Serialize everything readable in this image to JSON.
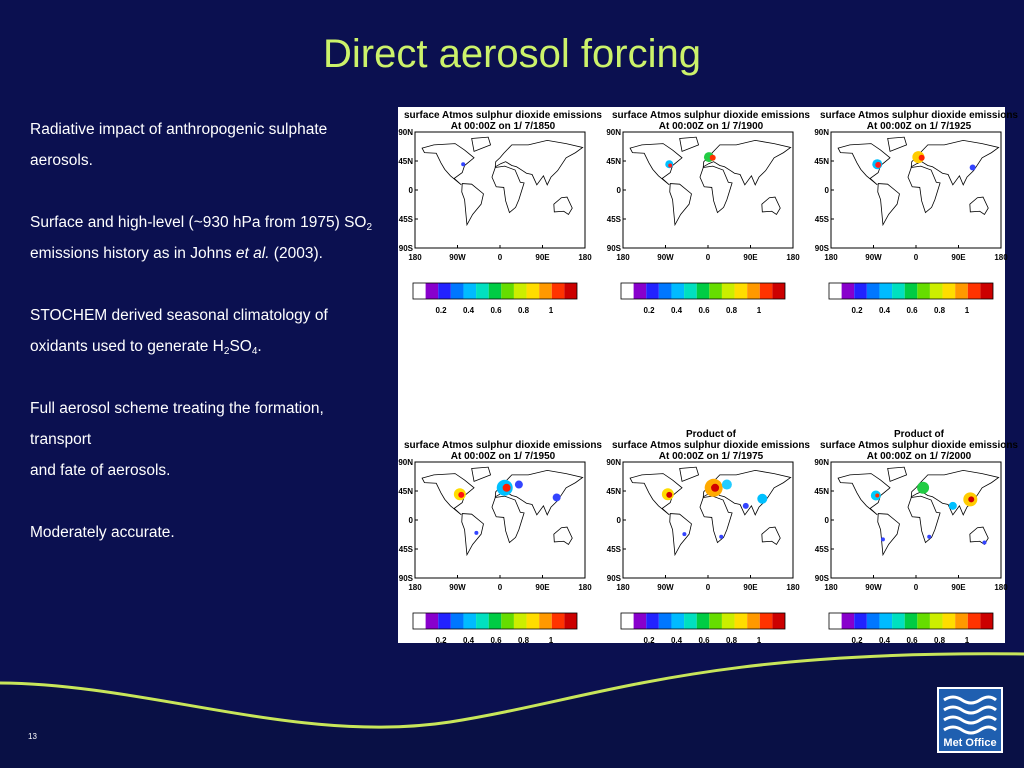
{
  "title": "Direct aerosol forcing",
  "bullets": [
    [
      [
        {
          "text": "Radiative impact of anthropogenic sulphate aerosols.",
          "style": "normal"
        }
      ]
    ],
    [
      [
        {
          "text": "Surface and high-level (~930 hPa from 1975) SO",
          "style": "normal"
        },
        {
          "text": "2",
          "style": "sub"
        },
        {
          "text": " emissions history as in Johns ",
          "style": "normal"
        },
        {
          "text": "et al.",
          "style": "italic"
        },
        {
          "text": " (2003).",
          "style": "normal"
        }
      ]
    ],
    [
      [
        {
          "text": "STOCHEM derived seasonal climatology of oxidants used to generate H",
          "style": "normal"
        },
        {
          "text": "2",
          "style": "sub"
        },
        {
          "text": "SO",
          "style": "normal"
        },
        {
          "text": "4",
          "style": "sub"
        },
        {
          "text": ".",
          "style": "normal"
        }
      ]
    ],
    [
      [
        {
          "text": "Full aerosol scheme treating the formation, transport",
          "style": "normal"
        }
      ],
      [
        {
          "text": "and fate of aerosols.",
          "style": "normal"
        }
      ]
    ],
    [
      [
        {
          "text": "Moderately accurate.",
          "style": "normal"
        }
      ]
    ]
  ],
  "map_axes": {
    "lat_labels": [
      "90N",
      "45N",
      "0",
      "45S",
      "90S"
    ],
    "lon_labels": [
      "180",
      "90W",
      "0",
      "90E",
      "180"
    ],
    "colorbar_labels": [
      "0.2",
      "0.4",
      "0.6",
      "0.8",
      "1"
    ]
  },
  "panels": [
    {
      "title_lines": [
        "surface Atmos sulphur dioxide emissions",
        "At 00:00Z on 1/ 7/1850"
      ]
    },
    {
      "title_lines": [
        "surface Atmos sulphur dioxide emissions",
        "At 00:00Z on 1/ 7/1900"
      ]
    },
    {
      "title_lines": [
        "surface Atmos sulphur dioxide emissions",
        "At 00:00Z on 1/ 7/1925"
      ]
    },
    {
      "title_lines": [
        "surface Atmos sulphur dioxide emissions",
        "At 00:00Z on 1/ 7/1950"
      ]
    },
    {
      "title_lines": [
        "Product of",
        "surface Atmos sulphur dioxide emissions",
        "At 00:00Z on 1/ 7/1975"
      ]
    },
    {
      "title_lines": [
        "Product of",
        "surface Atmos sulphur dioxide emissions",
        "At 00:00Z on 1/ 7/2000"
      ]
    }
  ],
  "slide_number": "13",
  "logo": "Met Office"
}
